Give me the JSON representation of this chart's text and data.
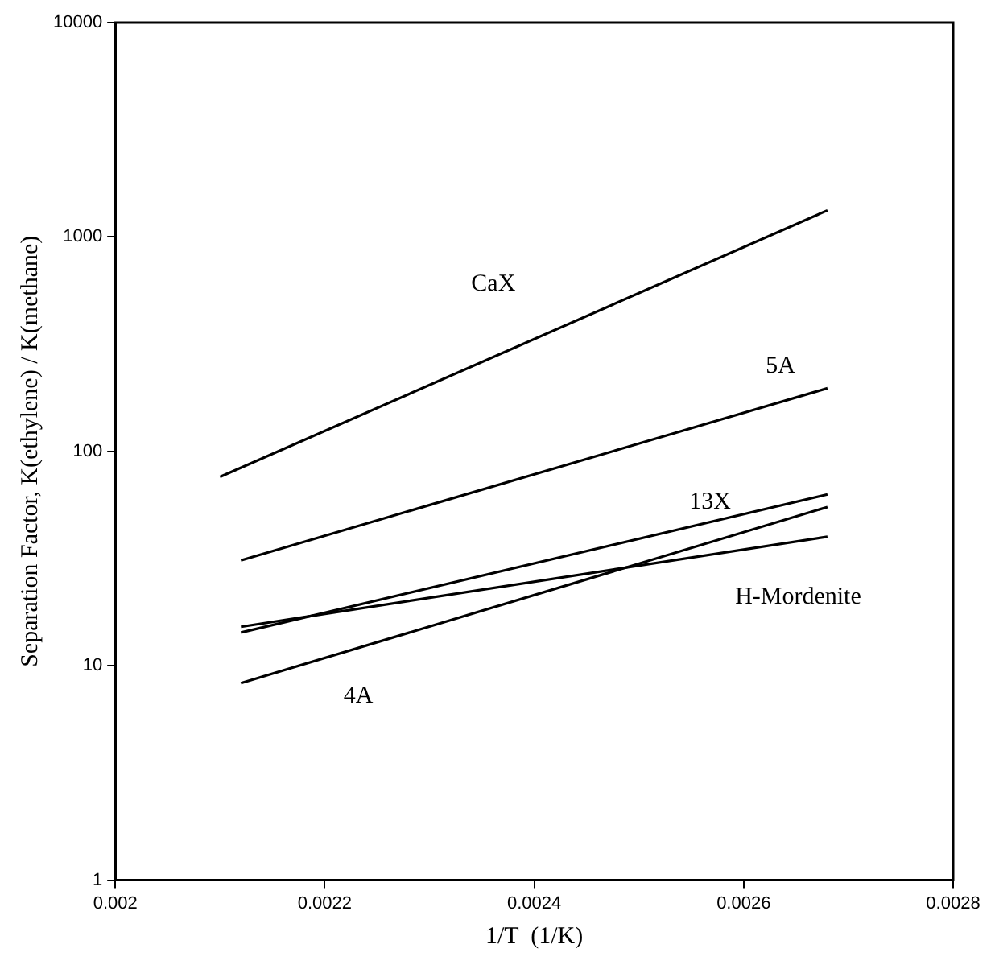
{
  "chart_data": {
    "type": "line",
    "xlabel": "1/T  (1/K)",
    "ylabel": "Separation Factor, K(ethylene) / K(methane)",
    "log": "y",
    "grid": false,
    "legend": false,
    "marker": "none",
    "line_style": "solid",
    "xlim": [
      0.002,
      0.0028
    ],
    "xticks": [
      0.002,
      0.0022,
      0.0024,
      0.0026,
      0.0028
    ],
    "ylim": [
      1,
      10000
    ],
    "yticks": [
      1,
      10,
      100,
      1000,
      10000
    ],
    "series": [
      {
        "name": "CaX",
        "color": "#000000",
        "x": [
          0.0021,
          0.00268
        ],
        "values": [
          76,
          1330
        ]
      },
      {
        "name": "5A",
        "color": "#000000",
        "x": [
          0.00212,
          0.00268
        ],
        "values": [
          31,
          197
        ]
      },
      {
        "name": "13X",
        "color": "#000000",
        "x": [
          0.00212,
          0.00268
        ],
        "values": [
          14.3,
          63
        ]
      },
      {
        "name": "H-Mordenite",
        "color": "#000000",
        "x": [
          0.00212,
          0.00268
        ],
        "values": [
          15.2,
          40
        ]
      },
      {
        "name": "4A",
        "color": "#000000",
        "x": [
          0.00212,
          0.00268
        ],
        "values": [
          8.3,
          55
        ]
      }
    ]
  }
}
